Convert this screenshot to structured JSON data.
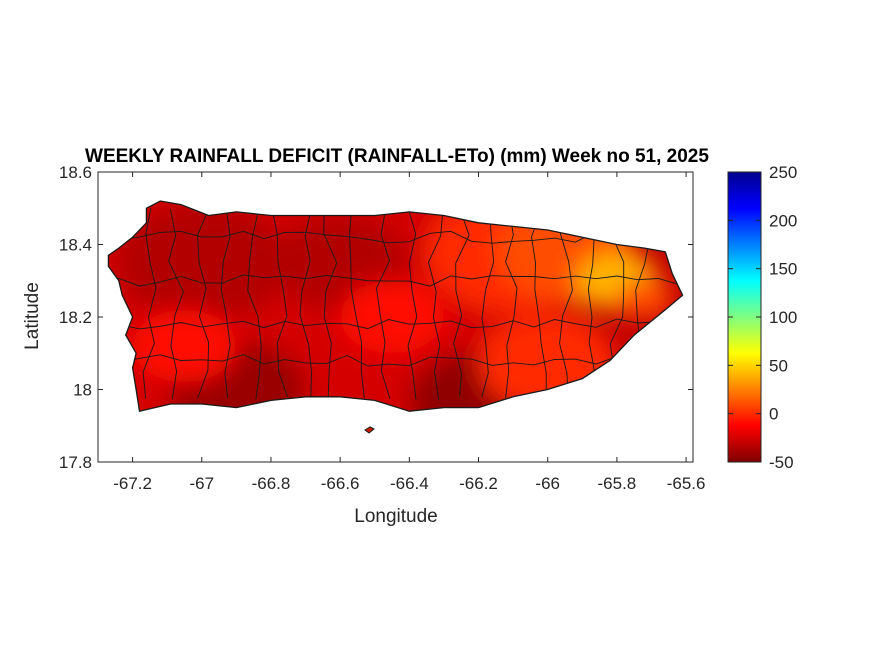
{
  "chart_data": {
    "type": "heatmap",
    "title": "WEEKLY RAINFALL DEFICIT (RAINFALL-ETo) (mm) Week no 51, 2025",
    "xlabel": "Longitude",
    "ylabel": "Latitude",
    "xlim": [
      -67.3,
      -65.58
    ],
    "ylim": [
      17.8,
      18.6
    ],
    "x_ticks": [
      -67.2,
      -67,
      -66.8,
      -66.6,
      -66.4,
      -66.2,
      -66,
      -65.8,
      -65.6
    ],
    "x_tick_labels": [
      "-67.2",
      "-67",
      "-66.8",
      "-66.6",
      "-66.4",
      "-66.2",
      "-66",
      "-65.8",
      "-65.6"
    ],
    "y_ticks": [
      17.8,
      18,
      18.2,
      18.4,
      18.6
    ],
    "y_tick_labels": [
      "17.8",
      "18",
      "18.2",
      "18.4",
      "18.6"
    ],
    "colorbar": {
      "min": -50,
      "max": 250,
      "ticks": [
        -50,
        0,
        50,
        100,
        150,
        200,
        250
      ],
      "tick_labels": [
        "-50",
        "0",
        "50",
        "100",
        "150",
        "200",
        "250"
      ],
      "colormap": "jet",
      "stops": [
        "#7f0000",
        "#ff0000",
        "#ff8000",
        "#ffff00",
        "#80ff80",
        "#00ffff",
        "#0080ff",
        "#0000ff",
        "#00008f"
      ]
    },
    "outline_lonlat": [
      [
        -67.27,
        18.37
      ],
      [
        -67.24,
        18.39
      ],
      [
        -67.2,
        18.42
      ],
      [
        -67.16,
        18.46
      ],
      [
        -67.16,
        18.5
      ],
      [
        -67.12,
        18.52
      ],
      [
        -67.06,
        18.51
      ],
      [
        -66.98,
        18.48
      ],
      [
        -66.9,
        18.49
      ],
      [
        -66.8,
        18.48
      ],
      [
        -66.7,
        18.48
      ],
      [
        -66.6,
        18.48
      ],
      [
        -66.5,
        18.48
      ],
      [
        -66.4,
        18.49
      ],
      [
        -66.3,
        18.48
      ],
      [
        -66.2,
        18.46
      ],
      [
        -66.1,
        18.45
      ],
      [
        -66.0,
        18.44
      ],
      [
        -65.9,
        18.42
      ],
      [
        -65.8,
        18.4
      ],
      [
        -65.72,
        18.39
      ],
      [
        -65.66,
        18.38
      ],
      [
        -65.64,
        18.32
      ],
      [
        -65.61,
        18.26
      ],
      [
        -65.66,
        18.22
      ],
      [
        -65.75,
        18.15
      ],
      [
        -65.82,
        18.08
      ],
      [
        -65.9,
        18.03
      ],
      [
        -66.0,
        18.0
      ],
      [
        -66.1,
        17.98
      ],
      [
        -66.2,
        17.95
      ],
      [
        -66.3,
        17.95
      ],
      [
        -66.4,
        17.94
      ],
      [
        -66.5,
        17.97
      ],
      [
        -66.6,
        17.98
      ],
      [
        -66.7,
        17.98
      ],
      [
        -66.8,
        17.97
      ],
      [
        -66.9,
        17.95
      ],
      [
        -67.0,
        17.96
      ],
      [
        -67.09,
        17.96
      ],
      [
        -67.18,
        17.94
      ],
      [
        -67.19,
        18.0
      ],
      [
        -67.2,
        18.06
      ],
      [
        -67.19,
        18.1
      ],
      [
        -67.22,
        18.15
      ],
      [
        -67.2,
        18.2
      ],
      [
        -67.23,
        18.26
      ],
      [
        -67.24,
        18.3
      ],
      [
        -67.27,
        18.34
      ]
    ],
    "value_blobs": [
      {
        "lon": -66.7,
        "lat": 18.2,
        "r": 0.8,
        "value": -25
      },
      {
        "lon": -67.0,
        "lat": 18.35,
        "r": 0.25,
        "value": -35
      },
      {
        "lon": -66.6,
        "lat": 18.35,
        "r": 0.2,
        "value": -35
      },
      {
        "lon": -66.9,
        "lat": 18.0,
        "r": 0.2,
        "value": -42
      },
      {
        "lon": -66.2,
        "lat": 17.97,
        "r": 0.2,
        "value": -45
      },
      {
        "lon": -66.1,
        "lat": 18.38,
        "r": 0.25,
        "value": 0
      },
      {
        "lon": -65.95,
        "lat": 18.38,
        "r": 0.2,
        "value": 10
      },
      {
        "lon": -65.8,
        "lat": 18.3,
        "r": 0.12,
        "value": 40
      },
      {
        "lon": -66.0,
        "lat": 18.07,
        "r": 0.2,
        "value": 0
      },
      {
        "lon": -66.45,
        "lat": 18.2,
        "r": 0.15,
        "value": -10
      },
      {
        "lon": -67.05,
        "lat": 18.12,
        "r": 0.15,
        "value": -10
      },
      {
        "lon": -65.72,
        "lat": 18.25,
        "r": 0.08,
        "value": 10
      }
    ]
  }
}
